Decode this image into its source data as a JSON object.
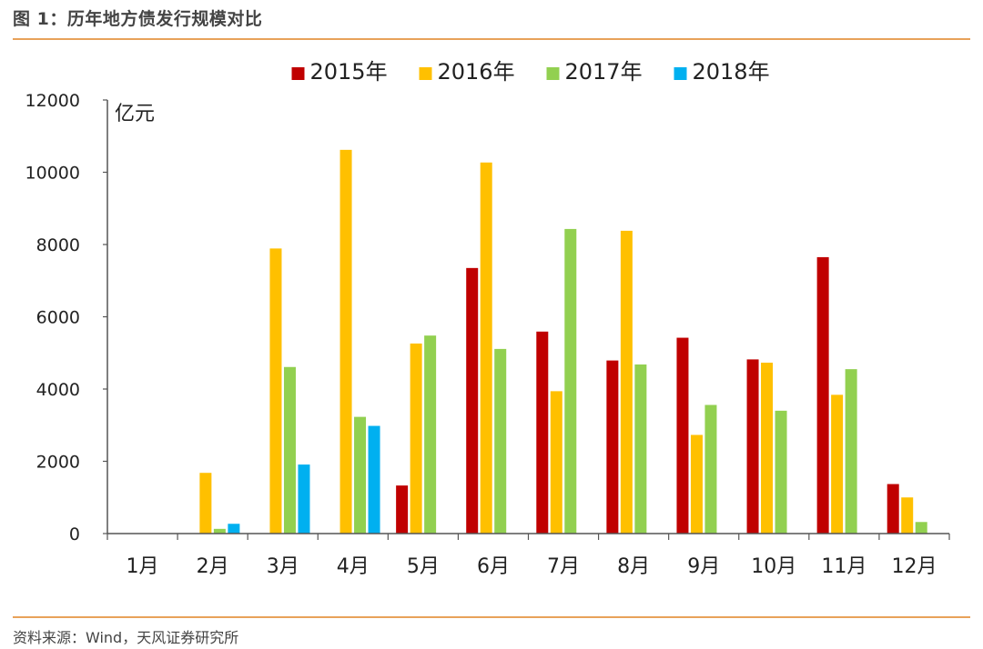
{
  "figure": {
    "title": "图 1：历年地方债发行规模对比",
    "source": "资料来源：Wind，天风证券研究所"
  },
  "chart_data": {
    "type": "bar",
    "ylabel": "亿元",
    "ylim": [
      0,
      12000
    ],
    "yticks": [
      0,
      2000,
      4000,
      6000,
      8000,
      10000,
      12000
    ],
    "legend_position": "top-center",
    "grid": false,
    "categories": [
      "1月",
      "2月",
      "3月",
      "4月",
      "5月",
      "6月",
      "7月",
      "8月",
      "9月",
      "10月",
      "11月",
      "12月"
    ],
    "series": [
      {
        "name": "2015年",
        "color": "#c00000",
        "values": [
          0,
          0,
          0,
          0,
          1330,
          7350,
          5590,
          4790,
          5420,
          4820,
          7650,
          1370
        ]
      },
      {
        "name": "2016年",
        "color": "#ffc000",
        "values": [
          0,
          1680,
          7890,
          10620,
          5260,
          10270,
          3940,
          8380,
          2730,
          4730,
          3840,
          1000
        ]
      },
      {
        "name": "2017年",
        "color": "#92d050",
        "values": [
          0,
          130,
          4610,
          3230,
          5480,
          5110,
          8430,
          4680,
          3560,
          3400,
          4550,
          320
        ]
      },
      {
        "name": "2018年",
        "color": "#00b0f0",
        "values": [
          0,
          270,
          1910,
          2980,
          null,
          null,
          null,
          null,
          null,
          null,
          null,
          null
        ]
      }
    ]
  }
}
